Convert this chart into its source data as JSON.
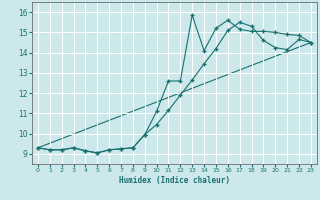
{
  "xlabel": "Humidex (Indice chaleur)",
  "bg_color": "#cce8eb",
  "line_color": "#1a7070",
  "grid_color": "#ffffff",
  "xlim": [
    -0.5,
    23.5
  ],
  "ylim": [
    8.5,
    16.5
  ],
  "xticks": [
    0,
    1,
    2,
    3,
    4,
    5,
    6,
    7,
    8,
    9,
    10,
    11,
    12,
    13,
    14,
    15,
    16,
    17,
    18,
    19,
    20,
    21,
    22,
    23
  ],
  "yticks": [
    9,
    10,
    11,
    12,
    13,
    14,
    15,
    16
  ],
  "line1_x": [
    0,
    1,
    2,
    3,
    4,
    5,
    6,
    7,
    8,
    9,
    10,
    11,
    12,
    13,
    14,
    15,
    16,
    17,
    18,
    19,
    20,
    21,
    22,
    23
  ],
  "line1_y": [
    9.3,
    9.2,
    9.2,
    9.3,
    9.15,
    9.05,
    9.2,
    9.25,
    9.3,
    9.95,
    11.1,
    12.6,
    12.6,
    15.85,
    14.1,
    15.2,
    15.6,
    15.15,
    15.05,
    15.05,
    15.0,
    14.9,
    14.85,
    14.5
  ],
  "line2_x": [
    0,
    1,
    2,
    3,
    4,
    5,
    6,
    7,
    8,
    9,
    10,
    11,
    12,
    13,
    14,
    15,
    16,
    17,
    18,
    19,
    20,
    21,
    22,
    23
  ],
  "line2_y": [
    9.3,
    9.2,
    9.2,
    9.3,
    9.15,
    9.05,
    9.2,
    9.25,
    9.3,
    9.95,
    10.45,
    11.15,
    11.9,
    12.65,
    13.45,
    14.2,
    15.1,
    15.5,
    15.3,
    14.6,
    14.25,
    14.15,
    14.65,
    14.5
  ],
  "line3_x": [
    0,
    23
  ],
  "line3_y": [
    9.3,
    14.5
  ]
}
